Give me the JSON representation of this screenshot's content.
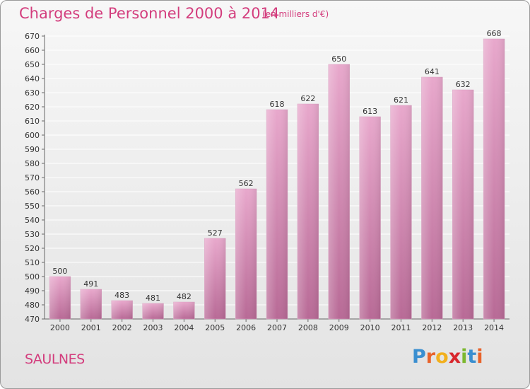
{
  "header": {
    "title": "Charges de Personnel 2000 à 2014",
    "subtitle": "(en milliers d'€)"
  },
  "commune": "SAULNES",
  "logo": {
    "letters": [
      "P",
      "r",
      "o",
      "x",
      "i",
      "t",
      "i"
    ],
    "colors": [
      "#3a8fd0",
      "#e8632b",
      "#f2b01e",
      "#d8272d",
      "#7cb82f",
      "#3a8fd0",
      "#e8632b"
    ]
  },
  "colors": {
    "bar_top": "#e8a8cc",
    "bar_bottom": "#b86a96",
    "title": "#d33d7d"
  },
  "chart_data": {
    "type": "bar",
    "categories": [
      "2000",
      "2001",
      "2002",
      "2003",
      "2004",
      "2005",
      "2006",
      "2007",
      "2008",
      "2009",
      "2010",
      "2011",
      "2012",
      "2013",
      "2014"
    ],
    "values": [
      500,
      491,
      483,
      481,
      482,
      527,
      562,
      618,
      622,
      650,
      613,
      621,
      641,
      632,
      668
    ],
    "title": "Charges de Personnel 2000 à 2014",
    "subtitle": "(en milliers d'€)",
    "ylim": [
      470,
      670
    ],
    "yticks": [
      470,
      480,
      490,
      500,
      510,
      520,
      530,
      540,
      550,
      560,
      570,
      580,
      590,
      600,
      610,
      620,
      630,
      640,
      650,
      660,
      670
    ],
    "grid": true,
    "legend": "none"
  }
}
